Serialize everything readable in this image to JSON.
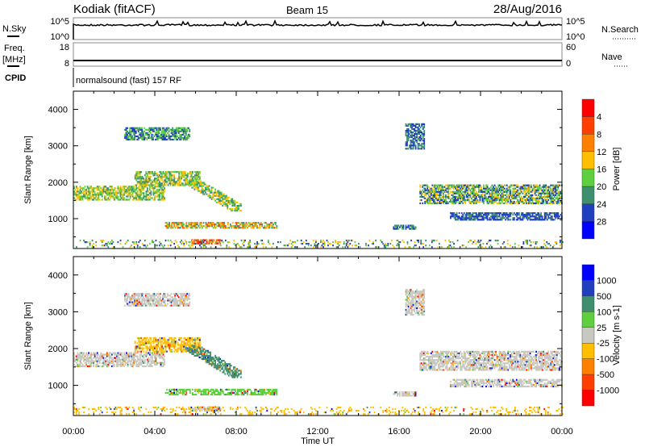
{
  "header": {
    "station": "Kodiak (fitACF)",
    "beam": "Beam 15",
    "date": "28/Aug/2016"
  },
  "noise_panel": {
    "left_label": "N.Sky",
    "right_label": "N.Search",
    "left_ticks": [
      "10^5",
      "10^0"
    ],
    "right_ticks": [
      "10^5",
      "10^0"
    ]
  },
  "freq_panel": {
    "left_label_1": "Freq.",
    "left_label_2": "[MHz]",
    "right_label": "Nave",
    "left_ticks": [
      "18",
      "8"
    ],
    "right_ticks": [
      "60",
      "0"
    ]
  },
  "cpid": {
    "label": "CPID",
    "value": "normalsound (fast) 157 RF"
  },
  "colors": {
    "power": [
      "#0000ff",
      "#1f3fbf",
      "#3f8f6f",
      "#5fcf3f",
      "#ffbf00",
      "#ff7f00",
      "#ff3f00",
      "#ff0000"
    ],
    "velocity": [
      "#0000ff",
      "#1f3fbf",
      "#3f8f6f",
      "#5fcf3f",
      "#c8c8c0",
      "#ffbf00",
      "#ff7f00",
      "#ff3f00",
      "#ff0000"
    ]
  },
  "chart_data": [
    {
      "type": "heatmap",
      "title": "Power",
      "ylabel": "Slant Range [km]",
      "xlabel": "Time UT",
      "xlim": [
        0,
        24
      ],
      "ylim": [
        180,
        4500
      ],
      "x_ticks": [
        "00:00",
        "04:00",
        "08:00",
        "12:00",
        "16:00",
        "20:00",
        "00:00"
      ],
      "y_ticks": [
        "1000",
        "2000",
        "3000",
        "4000"
      ],
      "colorbar": {
        "label": "Power [dB]",
        "ticks": [
          "4",
          "8",
          "12",
          "16",
          "20",
          "24",
          "28"
        ],
        "range": [
          0,
          32
        ]
      },
      "regions": [
        {
          "t": [
            0,
            4.5
          ],
          "r": [
            1500,
            1900
          ],
          "v": [
            8,
            20
          ]
        },
        {
          "t": [
            3,
            6.2
          ],
          "r": [
            1900,
            2300
          ],
          "v": [
            8,
            20
          ]
        },
        {
          "t": [
            5.5,
            8.2
          ],
          "r": [
            1200,
            2100
          ],
          "v": [
            8,
            20
          ],
          "diag": true
        },
        {
          "t": [
            4.5,
            10
          ],
          "r": [
            730,
            880
          ],
          "v": [
            8,
            28
          ]
        },
        {
          "t": [
            5.8,
            7.2
          ],
          "r": [
            300,
            420
          ],
          "v": [
            20,
            30
          ]
        },
        {
          "t": [
            2.5,
            5.7
          ],
          "r": [
            3150,
            3500
          ],
          "v": [
            4,
            16
          ]
        },
        {
          "t": [
            17,
            24
          ],
          "r": [
            1400,
            1900
          ],
          "v": [
            4,
            20
          ]
        },
        {
          "t": [
            18.5,
            24
          ],
          "r": [
            950,
            1150
          ],
          "v": [
            4,
            10
          ]
        },
        {
          "t": [
            15.7,
            16.8
          ],
          "r": [
            700,
            820
          ],
          "v": [
            4,
            16
          ]
        },
        {
          "t": [
            16.3,
            17.2
          ],
          "r": [
            2900,
            3600
          ],
          "v": [
            4,
            12
          ]
        },
        {
          "t": [
            0,
            24
          ],
          "r": [
            200,
            400
          ],
          "v": [
            4,
            20
          ],
          "sparse": true
        }
      ]
    },
    {
      "type": "heatmap",
      "title": "Velocity",
      "ylabel": "Slant Range [km]",
      "xlabel": "Time UT",
      "xlim": [
        0,
        24
      ],
      "ylim": [
        180,
        4500
      ],
      "x_ticks": [
        "00:00",
        "04:00",
        "08:00",
        "12:00",
        "16:00",
        "20:00",
        "00:00"
      ],
      "y_ticks": [
        "1000",
        "2000",
        "3000",
        "4000"
      ],
      "colorbar": {
        "label": "Velocity [m s-1]",
        "ticks": [
          "1000",
          "500",
          "100",
          "25",
          "-25",
          "-100",
          "-500",
          "-1000"
        ]
      },
      "regions": [
        {
          "t": [
            0,
            4.5
          ],
          "r": [
            1500,
            1900
          ],
          "c": 4
        },
        {
          "t": [
            3,
            6.2
          ],
          "r": [
            1900,
            2300
          ],
          "c": 5
        },
        {
          "t": [
            5.5,
            8.2
          ],
          "r": [
            1200,
            2100
          ],
          "c": 2,
          "diag": true
        },
        {
          "t": [
            4.5,
            10
          ],
          "r": [
            730,
            880
          ],
          "c": 3
        },
        {
          "t": [
            5.8,
            7.2
          ],
          "r": [
            300,
            420
          ],
          "c": 4
        },
        {
          "t": [
            2.5,
            5.7
          ],
          "r": [
            3150,
            3500
          ],
          "c": 4
        },
        {
          "t": [
            17,
            24
          ],
          "r": [
            1400,
            1900
          ],
          "c": 4
        },
        {
          "t": [
            18.5,
            24
          ],
          "r": [
            950,
            1150
          ],
          "c": 4
        },
        {
          "t": [
            15.7,
            16.8
          ],
          "r": [
            700,
            820
          ],
          "c": 4
        },
        {
          "t": [
            16.3,
            17.2
          ],
          "r": [
            2900,
            3600
          ],
          "c": 4
        },
        {
          "t": [
            0,
            24
          ],
          "r": [
            200,
            400
          ],
          "c": 5,
          "sparse": true
        }
      ]
    }
  ]
}
